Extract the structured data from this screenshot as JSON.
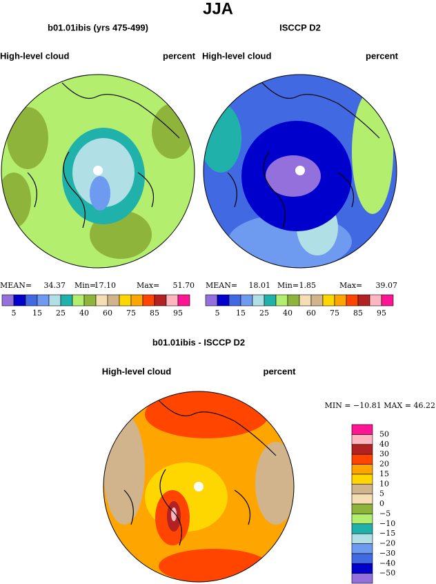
{
  "title": "JJA",
  "panels": [
    {
      "title": "b01.01ibis (yrs 475-499)",
      "left_label": "High-level cloud",
      "right_label": "percent",
      "stats": [
        "MEAN=",
        "34.37",
        "Min=",
        "17.10",
        "Max=",
        "51.70"
      ]
    },
    {
      "title": "ISCCP D2",
      "left_label": "High-level cloud",
      "right_label": "percent",
      "stats": [
        "MEAN=",
        "18.01",
        "Min=",
        "1.85",
        "Max=",
        "39.07"
      ]
    }
  ],
  "colorbar_top": {
    "colors": [
      "#9370db",
      "#0000cd",
      "#4169e1",
      "#6e9af0",
      "#b0e0e6",
      "#20b2aa",
      "#b4ee6e",
      "#8fb43c",
      "#f5deb3",
      "#d2b48c",
      "#ffd700",
      "#ffa500",
      "#ff4500",
      "#b22222",
      "#ffb6c1",
      "#ff1493"
    ],
    "labels": [
      "5",
      "15",
      "25",
      "40",
      "60",
      "75",
      "85",
      "95"
    ]
  },
  "difference": {
    "title": "b01.01ibis - ISCCP D2",
    "left_label": "High-level cloud",
    "right_label": "percent",
    "stats": "MIN = −10.81  MAX =  46.22",
    "colors": [
      "#9370db",
      "#0000cd",
      "#4169e1",
      "#6e9af0",
      "#b0e0e6",
      "#20b2aa",
      "#b4ee6e",
      "#8fb43c",
      "#f5deb3",
      "#d2b48c",
      "#ffd700",
      "#ffa500",
      "#ff4500",
      "#b22222",
      "#ffb6c1",
      "#ff1493"
    ],
    "labels": [
      "−50",
      "−40",
      "−30",
      "−20",
      "−15",
      "−10",
      "−5",
      "0",
      "5",
      "10",
      "15",
      "20",
      "30",
      "40",
      "50"
    ]
  }
}
